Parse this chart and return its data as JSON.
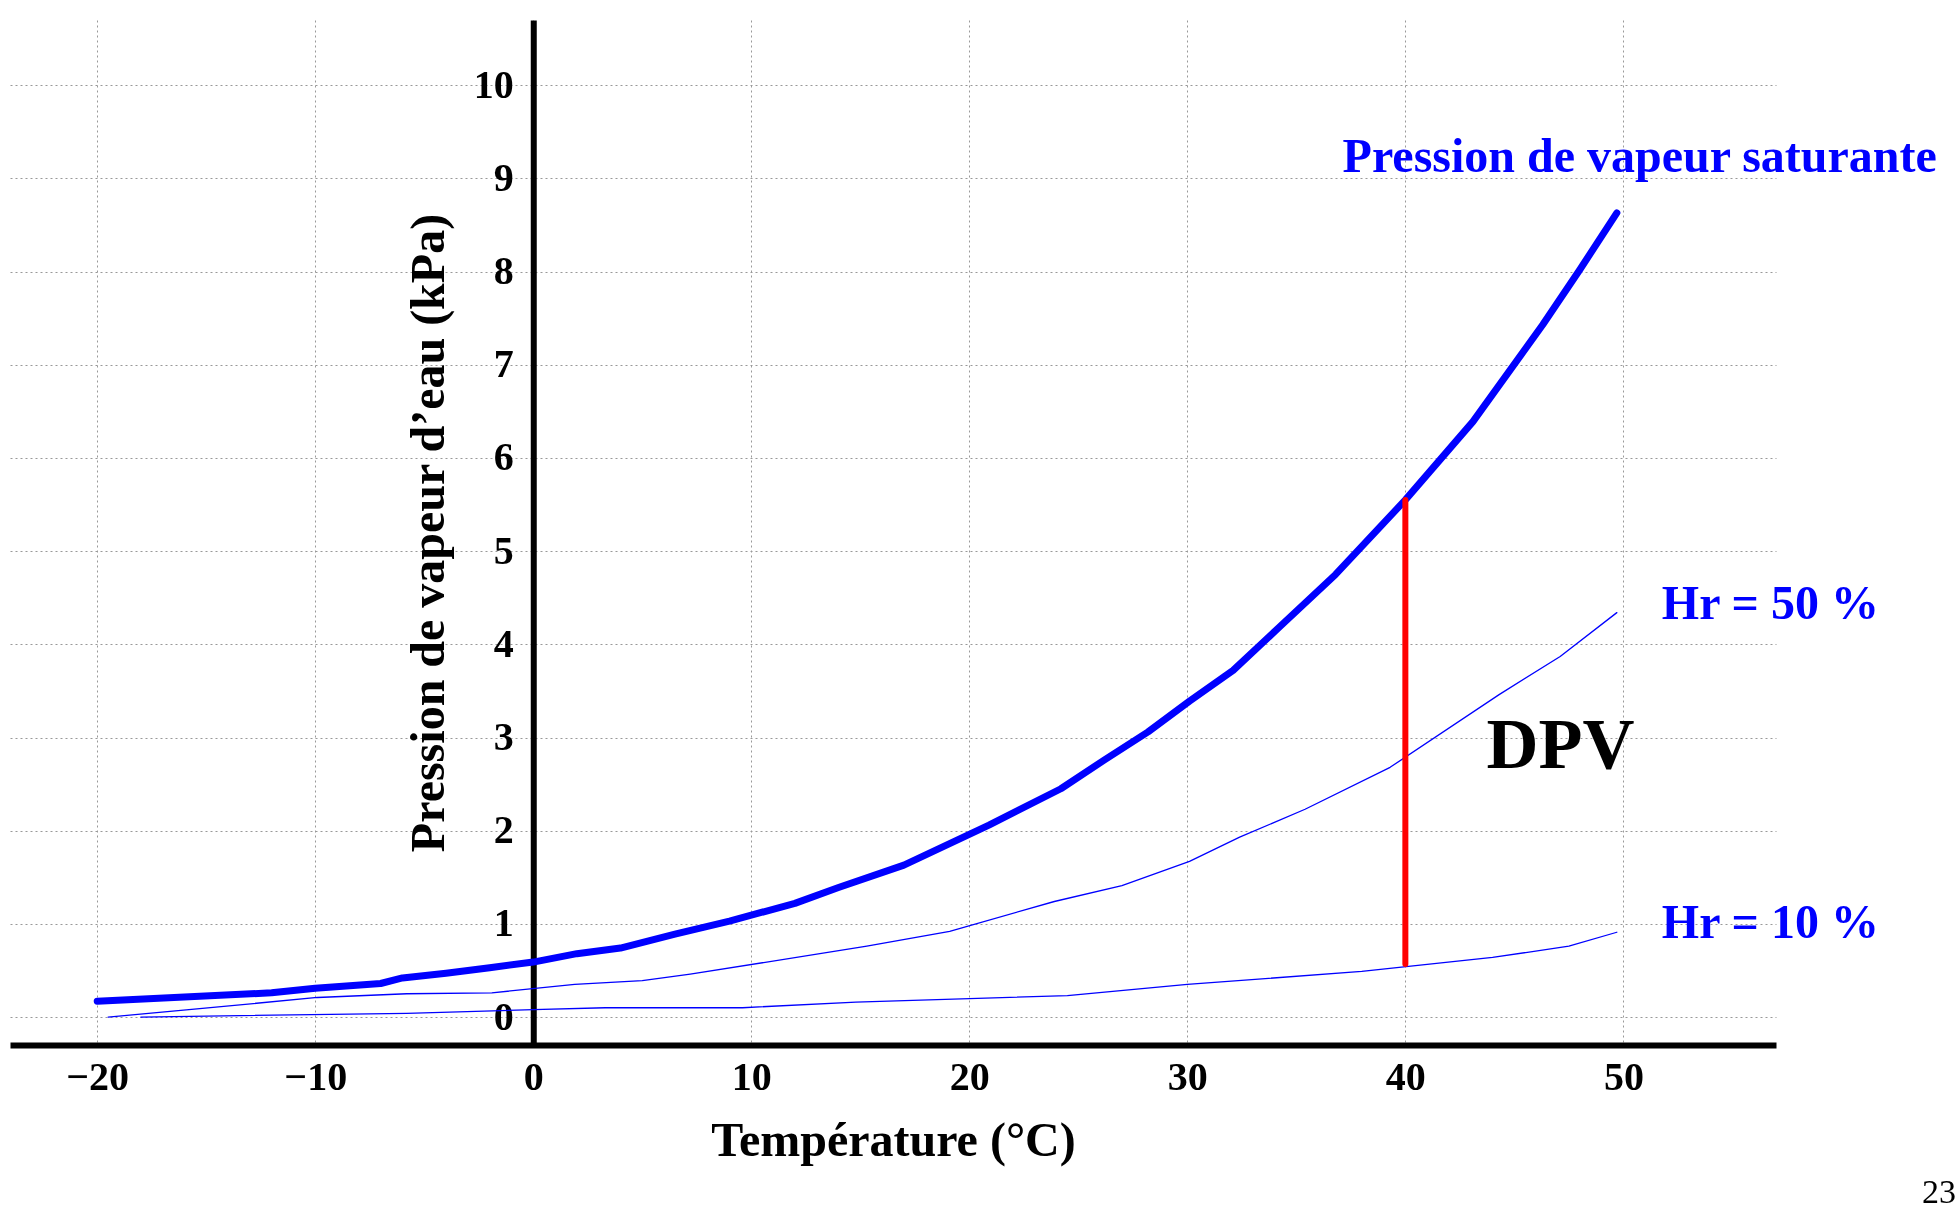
{
  "chart_data": {
    "type": "line",
    "xlabel": "Température (°C)",
    "ylabel": "Pression de vapeur d’eau (kPa)",
    "xlim": [
      -24,
      57
    ],
    "ylim": [
      -0.3,
      10.7
    ],
    "xticks": [
      -20,
      -10,
      0,
      10,
      20,
      30,
      40,
      50
    ],
    "yticks": [
      0,
      1,
      2,
      3,
      4,
      5,
      6,
      7,
      8,
      9,
      10
    ],
    "grid": true,
    "series": [
      {
        "name": "Pression de vapeur saturante",
        "color": "#0000ff",
        "x": [
          -20,
          -12,
          -10,
          -7,
          -6,
          -4,
          -2,
          0,
          2,
          4,
          6.5,
          9,
          12,
          14,
          17,
          20.9,
          24.2,
          26.2,
          28.2,
          30.1,
          32.1,
          34.2,
          36.8,
          40,
          43.1,
          46.3,
          48,
          49.7
        ],
        "values": [
          0.17,
          0.26,
          0.31,
          0.36,
          0.42,
          0.47,
          0.53,
          0.59,
          0.68,
          0.74,
          0.89,
          1.03,
          1.22,
          1.39,
          1.63,
          2.06,
          2.45,
          2.76,
          3.06,
          3.39,
          3.72,
          4.18,
          4.75,
          5.55,
          6.39,
          7.43,
          8.02,
          8.63
        ]
      },
      {
        "name": "Hr = 50 %",
        "color": "#0000ff",
        "x": [
          -19.5,
          -15.3,
          -9.9,
          -5.8,
          -1.9,
          1.9,
          5,
          7.2,
          15.3,
          19.1,
          23.9,
          27,
          30.1,
          32.4,
          35.4,
          39.3,
          44.3,
          47.1,
          49.7
        ],
        "values": [
          0,
          0.09,
          0.21,
          0.25,
          0.26,
          0.35,
          0.39,
          0.46,
          0.76,
          0.92,
          1.24,
          1.41,
          1.67,
          1.93,
          2.23,
          2.68,
          3.46,
          3.87,
          4.34
        ]
      },
      {
        "name": "Hr = 10 %",
        "color": "#0000ff",
        "x": [
          -18,
          -5.8,
          0,
          3.3,
          9.6,
          14.8,
          24.5,
          30,
          38,
          44,
          47.5,
          49.7
        ],
        "values": [
          0,
          0.04,
          0.08,
          0.1,
          0.1,
          0.16,
          0.23,
          0.35,
          0.49,
          0.64,
          0.76,
          0.91
        ]
      },
      {
        "color": "#ff0000",
        "x": [
          40,
          40
        ],
        "values": [
          0.57,
          5.55
        ]
      }
    ],
    "annotations": [
      "DPV",
      "23"
    ]
  }
}
